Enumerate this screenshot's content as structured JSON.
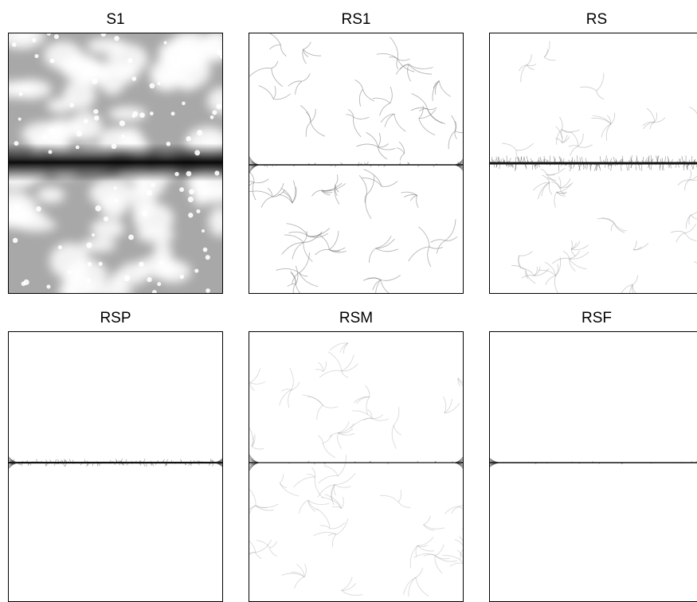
{
  "panels": [
    {
      "id": "s1",
      "title": "S1"
    },
    {
      "id": "rs1",
      "title": "RS1"
    },
    {
      "id": "rs",
      "title": "RS"
    },
    {
      "id": "rsp",
      "title": "RSP"
    },
    {
      "id": "rsm",
      "title": "RSM"
    },
    {
      "id": "rsf",
      "title": "RSF"
    }
  ],
  "colors": {
    "frame": "#000000",
    "background": "#ffffff",
    "dense_band": "#1a1a1a",
    "light_texture": "#b0b0b0"
  }
}
